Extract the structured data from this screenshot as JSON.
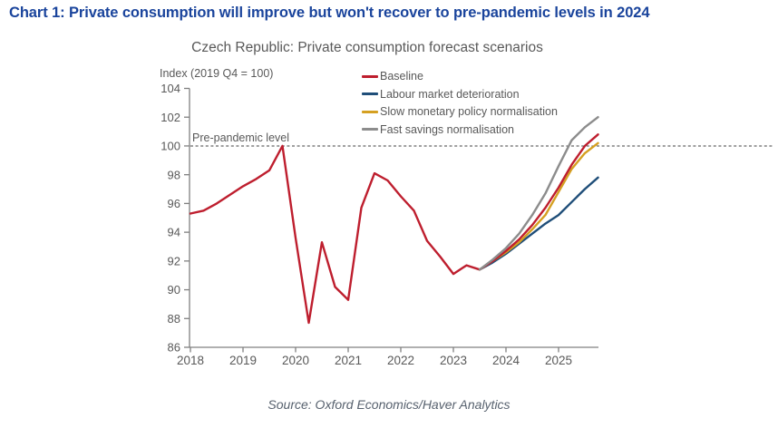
{
  "header": {
    "title": "Chart 1: Private consumption will improve but won't recover to pre-pandemic levels in 2024"
  },
  "chart_data": {
    "type": "line",
    "title": "Czech Republic: Private consumption forecast scenarios",
    "ylabel": "Index (2019 Q4 = 100)",
    "xlabel": "",
    "source": "Source: Oxford Economics/Haver Analytics",
    "grid": false,
    "legend_position": "top-right",
    "ylim": [
      86,
      104
    ],
    "ytick_step": 2,
    "x_years": [
      "2018",
      "2019",
      "2020",
      "2021",
      "2022",
      "2023",
      "2024",
      "2025"
    ],
    "x_range": [
      "2018 Q1",
      "2025 Q4"
    ],
    "frequency": "quarterly",
    "annotation": {
      "label": "Pre-pandemic level",
      "y": 100
    },
    "colors": {
      "header_blue": "#1a449c",
      "text_gray": "#595959",
      "axis_gray": "#808080",
      "dashed_line": "#404040"
    },
    "history": {
      "name": "Baseline (history)",
      "color": "#be1e2e",
      "start": "2018 Q1",
      "values": [
        95.3,
        95.5,
        96.0,
        96.6,
        97.2,
        97.7,
        98.3,
        100.0,
        93.6,
        87.7,
        93.3,
        90.2,
        89.3,
        95.7,
        98.1,
        97.6,
        96.5,
        95.5,
        93.4,
        92.3,
        91.1,
        91.7,
        91.4
      ]
    },
    "forecast_start": "2023 Q3",
    "series": [
      {
        "name": "Baseline",
        "color": "#be1e2e",
        "values": [
          91.4,
          92.0,
          92.7,
          93.5,
          94.5,
          95.7,
          97.1,
          98.7,
          100.0,
          100.8
        ]
      },
      {
        "name": "Labour market deterioration",
        "color": "#1f4e79",
        "values": [
          91.4,
          91.9,
          92.5,
          93.2,
          93.9,
          94.6,
          95.2,
          96.1,
          97.0,
          97.8
        ]
      },
      {
        "name": "Slow monetary policy normalisation",
        "color": "#d5a021",
        "values": [
          91.4,
          92.0,
          92.6,
          93.3,
          94.2,
          95.2,
          96.8,
          98.4,
          99.5,
          100.2
        ]
      },
      {
        "name": "Fast savings normalisation",
        "color": "#8c8c8c",
        "values": [
          91.4,
          92.1,
          92.9,
          93.9,
          95.2,
          96.7,
          98.6,
          100.4,
          101.3,
          102.0
        ]
      }
    ],
    "legend": [
      {
        "label": "Baseline",
        "color": "#be1e2e"
      },
      {
        "label": "Labour market deterioration",
        "color": "#1f4e79"
      },
      {
        "label": "Slow monetary policy normalisation",
        "color": "#d5a021"
      },
      {
        "label": "Fast savings normalisation",
        "color": "#8c8c8c"
      }
    ]
  }
}
